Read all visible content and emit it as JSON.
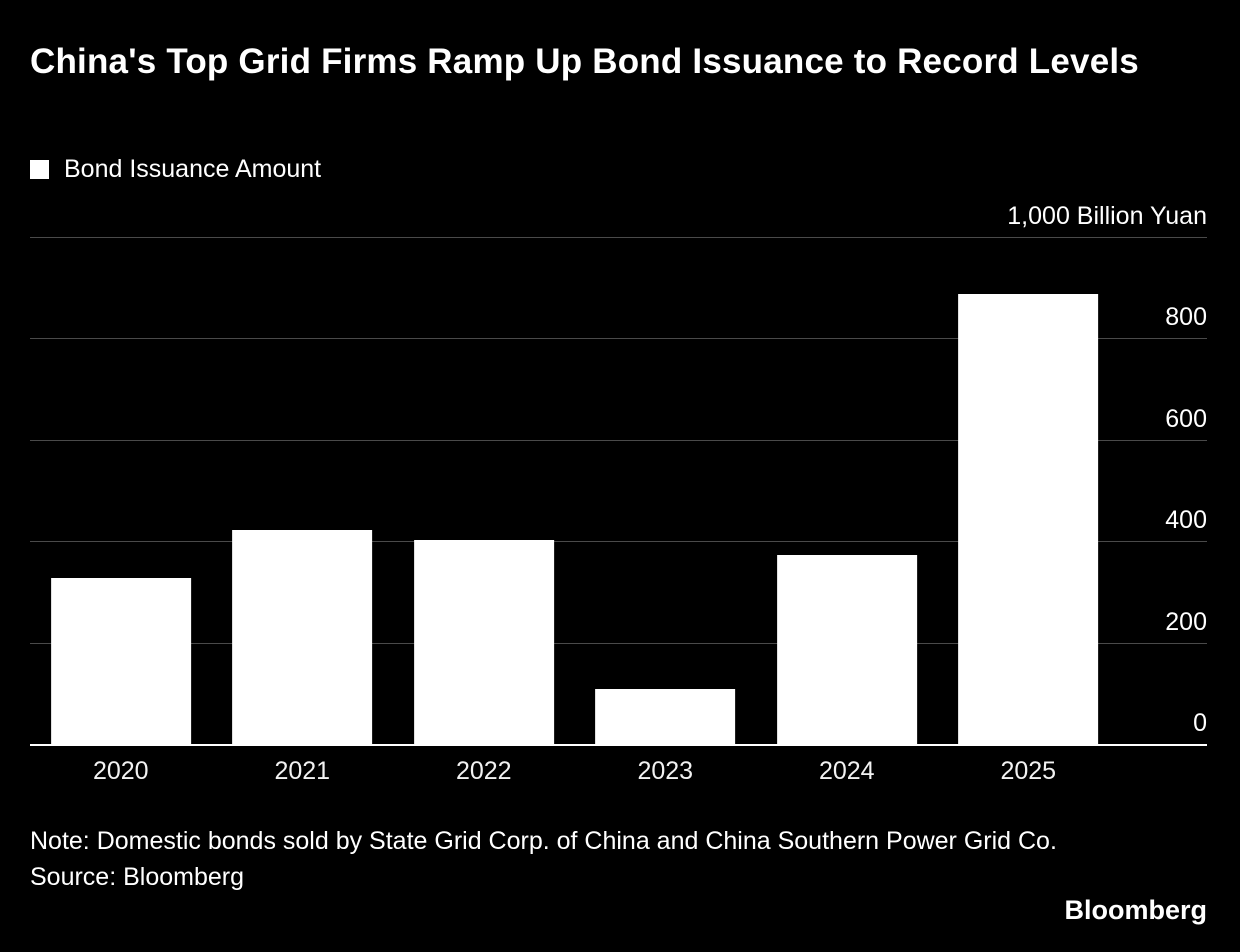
{
  "title": "China's Top Grid Firms Ramp Up Bond Issuance to Record Levels",
  "legend": {
    "label": "Bond Issuance Amount",
    "swatch_color": "#ffffff"
  },
  "unit_label": "1,000 Billion Yuan",
  "note_line1": "Note: Domestic bonds sold by State Grid Corp. of China and China Southern Power Grid Co.",
  "note_line2": "Source: Bloomberg",
  "brand": "Bloomberg",
  "colors": {
    "background": "#000000",
    "bar": "#ffffff",
    "gridline": "#4a4a4a",
    "baseline": "#ffffff",
    "text": "#ffffff"
  },
  "chart_data": {
    "type": "bar",
    "categories": [
      "2020",
      "2021",
      "2022",
      "2023",
      "2024",
      "2025"
    ],
    "values": [
      330,
      425,
      405,
      110,
      375,
      890
    ],
    "title": "China's Top Grid Firms Ramp Up Bond Issuance to Record Levels",
    "xlabel": "",
    "ylabel": "1,000 Billion Yuan",
    "ylim": [
      0,
      1000
    ],
    "ytick_labels": [
      0,
      200,
      400,
      600,
      800
    ],
    "gridlines": [
      200,
      400,
      600,
      800,
      1000
    ],
    "grid": true,
    "legend_entries": [
      "Bond Issuance Amount"
    ],
    "legend_position": "top-left",
    "bar_color": "#ffffff"
  }
}
